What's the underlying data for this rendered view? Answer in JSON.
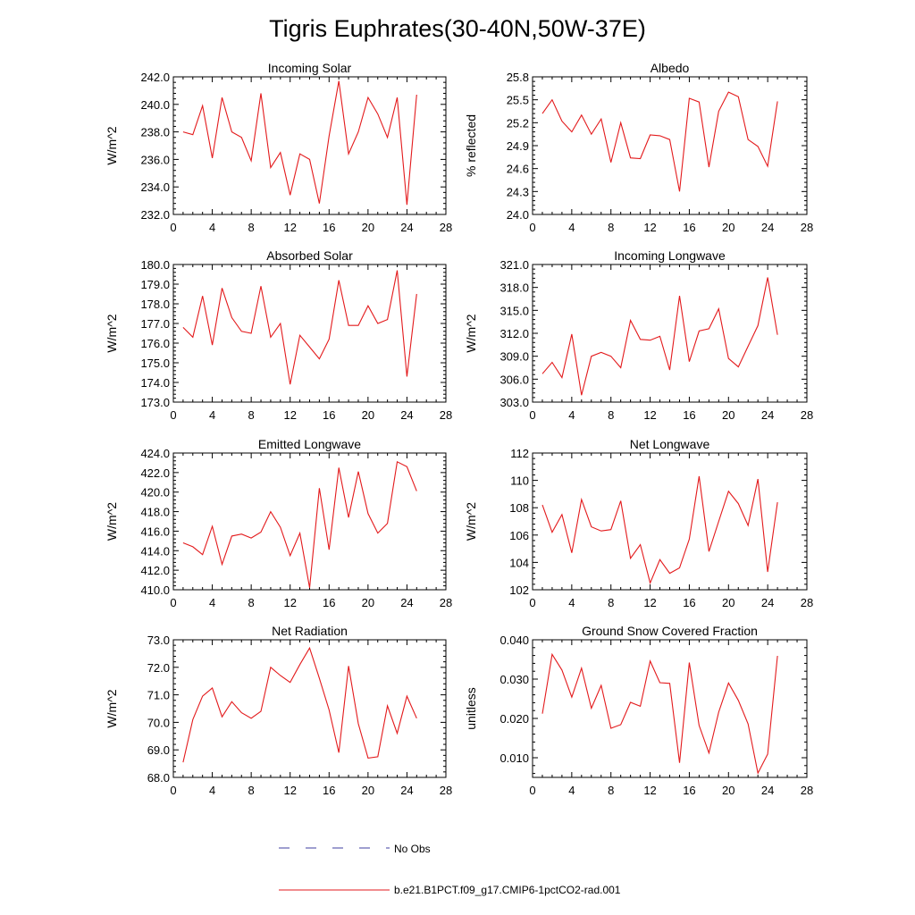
{
  "title": "Tigris Euphrates(30-40N,50W-37E)",
  "colors": {
    "model": "#e31a1c",
    "obs": "#3f3fa0",
    "axis": "#000000"
  },
  "legend": {
    "obs_label": "No Obs",
    "model_label": "b.e21.B1PCT.f09_g17.CMIP6-1pctCO2-rad.001"
  },
  "chart_data": [
    {
      "type": "line",
      "title": "Incoming Solar",
      "ylabel": "W/m^2",
      "xlabel": "",
      "xlim": [
        0,
        28
      ],
      "xticks": [
        0,
        4,
        8,
        12,
        16,
        20,
        24,
        28
      ],
      "ylim": [
        232,
        242
      ],
      "yticks": [
        "232.0",
        "234.0",
        "236.0",
        "238.0",
        "240.0",
        "242.0"
      ],
      "x": [
        1,
        2,
        3,
        4,
        5,
        6,
        7,
        8,
        9,
        10,
        11,
        12,
        13,
        14,
        15,
        16,
        17,
        18,
        19,
        20,
        21,
        22,
        23,
        24,
        25
      ],
      "series": [
        {
          "name": "b.e21.B1PCT.f09_g17.CMIP6-1pctCO2-rad.001",
          "values": [
            238.0,
            237.8,
            239.9,
            236.1,
            240.5,
            238.0,
            237.6,
            235.9,
            240.8,
            235.4,
            236.5,
            233.4,
            236.4,
            236.0,
            232.8,
            237.7,
            241.7,
            236.4,
            238.0,
            240.5,
            239.3,
            237.6,
            240.5,
            232.7,
            240.7
          ]
        }
      ]
    },
    {
      "type": "line",
      "title": "Albedo",
      "ylabel": "% reflected",
      "xlabel": "",
      "xlim": [
        0,
        28
      ],
      "xticks": [
        0,
        4,
        8,
        12,
        16,
        20,
        24,
        28
      ],
      "ylim": [
        24.0,
        25.8
      ],
      "yticks": [
        "24.0",
        "24.3",
        "24.6",
        "24.9",
        "25.2",
        "25.5",
        "25.8"
      ],
      "x": [
        1,
        2,
        3,
        4,
        5,
        6,
        7,
        8,
        9,
        10,
        11,
        12,
        13,
        14,
        15,
        16,
        17,
        18,
        19,
        20,
        21,
        22,
        23,
        24,
        25
      ],
      "series": [
        {
          "name": "b.e21.B1PCT.f09_g17.CMIP6-1pctCO2-rad.001",
          "values": [
            25.32,
            25.5,
            25.22,
            25.08,
            25.3,
            25.05,
            25.25,
            24.68,
            25.2,
            24.74,
            24.73,
            25.04,
            25.03,
            24.98,
            24.3,
            25.52,
            25.47,
            24.62,
            25.35,
            25.6,
            25.54,
            24.98,
            24.89,
            24.63,
            25.48
          ]
        }
      ]
    },
    {
      "type": "line",
      "title": "Absorbed Solar",
      "ylabel": "W/m^2",
      "xlabel": "",
      "xlim": [
        0,
        28
      ],
      "xticks": [
        0,
        4,
        8,
        12,
        16,
        20,
        24,
        28
      ],
      "ylim": [
        173,
        180
      ],
      "yticks": [
        "173.0",
        "174.0",
        "175.0",
        "176.0",
        "177.0",
        "178.0",
        "179.0",
        "180.0"
      ],
      "x": [
        1,
        2,
        3,
        4,
        5,
        6,
        7,
        8,
        9,
        10,
        11,
        12,
        13,
        14,
        15,
        16,
        17,
        18,
        19,
        20,
        21,
        22,
        23,
        24,
        25
      ],
      "series": [
        {
          "name": "b.e21.B1PCT.f09_g17.CMIP6-1pctCO2-rad.001",
          "values": [
            176.8,
            176.3,
            178.4,
            175.9,
            178.8,
            177.3,
            176.6,
            176.5,
            178.9,
            176.3,
            177.0,
            173.9,
            176.4,
            175.8,
            175.2,
            176.2,
            179.2,
            176.9,
            176.9,
            177.9,
            177.0,
            177.2,
            179.7,
            174.3,
            178.5
          ]
        }
      ]
    },
    {
      "type": "line",
      "title": "Incoming Longwave",
      "ylabel": "W/m^2",
      "xlabel": "",
      "xlim": [
        0,
        28
      ],
      "xticks": [
        0,
        4,
        8,
        12,
        16,
        20,
        24,
        28
      ],
      "ylim": [
        303,
        321
      ],
      "yticks": [
        "303.0",
        "306.0",
        "309.0",
        "312.0",
        "315.0",
        "318.0",
        "321.0"
      ],
      "x": [
        1,
        2,
        3,
        4,
        5,
        6,
        7,
        8,
        9,
        10,
        11,
        12,
        13,
        14,
        15,
        16,
        17,
        18,
        19,
        20,
        21,
        22,
        23,
        24,
        25
      ],
      "series": [
        {
          "name": "b.e21.B1PCT.f09_g17.CMIP6-1pctCO2-rad.001",
          "values": [
            306.7,
            308.2,
            306.2,
            311.9,
            303.9,
            309.0,
            309.5,
            309.0,
            307.5,
            313.7,
            311.2,
            311.1,
            311.6,
            307.2,
            316.9,
            308.3,
            312.3,
            312.6,
            315.2,
            308.7,
            307.6,
            310.3,
            313.0,
            319.3,
            311.8
          ]
        }
      ]
    },
    {
      "type": "line",
      "title": "Emitted Longwave",
      "ylabel": "W/m^2",
      "xlabel": "",
      "xlim": [
        0,
        28
      ],
      "xticks": [
        0,
        4,
        8,
        12,
        16,
        20,
        24,
        28
      ],
      "ylim": [
        410,
        424
      ],
      "yticks": [
        "410.0",
        "412.0",
        "414.0",
        "416.0",
        "418.0",
        "420.0",
        "422.0",
        "424.0"
      ],
      "x": [
        1,
        2,
        3,
        4,
        5,
        6,
        7,
        8,
        9,
        10,
        11,
        12,
        13,
        14,
        15,
        16,
        17,
        18,
        19,
        20,
        21,
        22,
        23,
        24,
        25
      ],
      "series": [
        {
          "name": "b.e21.B1PCT.f09_g17.CMIP6-1pctCO2-rad.001",
          "values": [
            414.8,
            414.4,
            413.6,
            416.5,
            412.6,
            415.5,
            415.7,
            415.3,
            415.9,
            418.0,
            416.4,
            413.5,
            415.8,
            410.2,
            420.4,
            414.1,
            422.5,
            417.4,
            422.1,
            417.8,
            415.8,
            416.8,
            423.1,
            422.6,
            420.1
          ]
        }
      ]
    },
    {
      "type": "line",
      "title": "Net Longwave",
      "ylabel": "W/m^2",
      "xlabel": "",
      "xlim": [
        0,
        28
      ],
      "xticks": [
        0,
        4,
        8,
        12,
        16,
        20,
        24,
        28
      ],
      "ylim": [
        102,
        112
      ],
      "yticks": [
        "102",
        "104",
        "106",
        "108",
        "110",
        "112"
      ],
      "x": [
        1,
        2,
        3,
        4,
        5,
        6,
        7,
        8,
        9,
        10,
        11,
        12,
        13,
        14,
        15,
        16,
        17,
        18,
        19,
        20,
        21,
        22,
        23,
        24,
        25
      ],
      "series": [
        {
          "name": "b.e21.B1PCT.f09_g17.CMIP6-1pctCO2-rad.001",
          "values": [
            108.2,
            106.2,
            107.5,
            104.7,
            108.6,
            106.6,
            106.3,
            106.4,
            108.5,
            104.3,
            105.3,
            102.5,
            104.2,
            103.2,
            103.6,
            105.7,
            110.3,
            104.8,
            107.0,
            109.2,
            108.3,
            106.7,
            110.1,
            103.3,
            108.4
          ]
        }
      ]
    },
    {
      "type": "line",
      "title": "Net Radiation",
      "ylabel": "W/m^2",
      "xlabel": "",
      "xlim": [
        0,
        28
      ],
      "xticks": [
        0,
        4,
        8,
        12,
        16,
        20,
        24,
        28
      ],
      "ylim": [
        68,
        73
      ],
      "yticks": [
        "68.0",
        "69.0",
        "70.0",
        "71.0",
        "72.0",
        "73.0"
      ],
      "x": [
        1,
        2,
        3,
        4,
        5,
        6,
        7,
        8,
        9,
        10,
        11,
        12,
        13,
        14,
        15,
        16,
        17,
        18,
        19,
        20,
        21,
        22,
        23,
        24,
        25
      ],
      "series": [
        {
          "name": "b.e21.B1PCT.f09_g17.CMIP6-1pctCO2-rad.001",
          "values": [
            68.55,
            70.1,
            70.95,
            71.25,
            70.2,
            70.75,
            70.35,
            70.15,
            70.4,
            72.0,
            71.7,
            71.45,
            72.1,
            72.7,
            71.6,
            70.45,
            68.9,
            72.05,
            69.95,
            68.7,
            68.75,
            70.6,
            69.6,
            70.95,
            70.15
          ]
        }
      ]
    },
    {
      "type": "line",
      "title": "Ground Snow Covered Fraction",
      "ylabel": "unitless",
      "xlabel": "",
      "xlim": [
        0,
        28
      ],
      "xticks": [
        0,
        4,
        8,
        12,
        16,
        20,
        24,
        28
      ],
      "ylim": [
        0.005,
        0.04
      ],
      "yticks": [
        "0.010",
        "0.020",
        "0.030",
        "0.040"
      ],
      "x": [
        1,
        2,
        3,
        4,
        5,
        6,
        7,
        8,
        9,
        10,
        11,
        12,
        13,
        14,
        15,
        16,
        17,
        18,
        19,
        20,
        21,
        22,
        23,
        24,
        25
      ],
      "series": [
        {
          "name": "b.e21.B1PCT.f09_g17.CMIP6-1pctCO2-rad.001",
          "values": [
            0.0212,
            0.0363,
            0.0323,
            0.0254,
            0.0328,
            0.0226,
            0.0284,
            0.0175,
            0.0184,
            0.0241,
            0.0231,
            0.0346,
            0.0291,
            0.0289,
            0.0087,
            0.0342,
            0.0182,
            0.0112,
            0.0216,
            0.029,
            0.0246,
            0.0186,
            0.0061,
            0.0109,
            0.0359
          ]
        }
      ]
    }
  ]
}
